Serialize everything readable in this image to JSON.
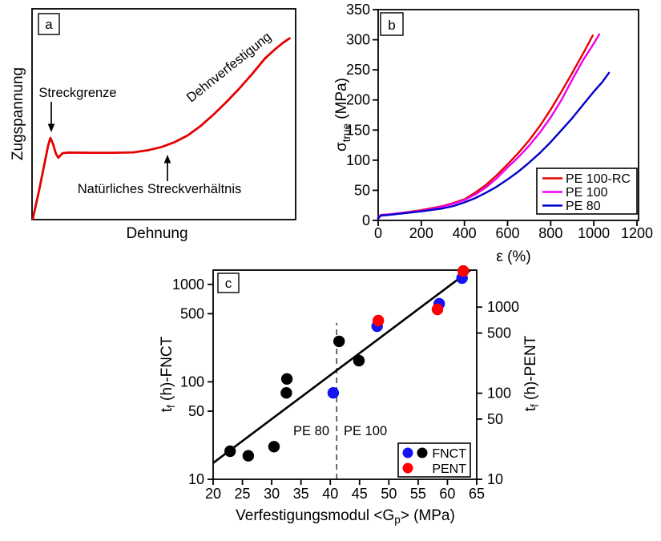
{
  "figure": {
    "background": "#ffffff",
    "description": "Three-panel polyethylene strain-hardening figure"
  },
  "chart_data": [
    {
      "id": "a",
      "type": "line",
      "panel_label": "a",
      "xlabel": "Dehnung",
      "ylabel": "Zugspannung",
      "annotations": {
        "yield_point": "Streckgrenze",
        "strain_hardening": "Dehnverfestigung",
        "natural_draw_ratio": "Natürliches Streckverhältnis"
      },
      "curve_color": "#e60000",
      "curve_units": "normalized 0-100",
      "curve": [
        [
          0,
          0
        ],
        [
          2.5,
          14
        ],
        [
          4.6,
          27
        ],
        [
          6,
          35.5
        ],
        [
          6.8,
          38.8
        ],
        [
          7.8,
          36
        ],
        [
          9,
          31
        ],
        [
          9.9,
          29.3
        ],
        [
          11.5,
          31.5
        ],
        [
          14,
          31.8
        ],
        [
          22,
          31.7
        ],
        [
          31,
          31.7
        ],
        [
          39,
          31.9
        ],
        [
          45,
          33
        ],
        [
          50,
          34.5
        ],
        [
          55,
          36.8
        ],
        [
          60,
          40
        ],
        [
          65,
          44.5
        ],
        [
          70,
          50
        ],
        [
          75,
          56
        ],
        [
          80,
          62.5
        ],
        [
          85,
          69.5
        ],
        [
          90,
          77
        ],
        [
          94,
          81.5
        ],
        [
          97,
          84.5
        ],
        [
          99.5,
          86.6
        ]
      ]
    },
    {
      "id": "b",
      "type": "line",
      "panel_label": "b",
      "xlabel": "ε (%)",
      "ylabel": "σtrue (MPa)",
      "ylabel_main": "σ",
      "ylabel_sub": "true",
      "ylabel_unit": " (MPa)",
      "xlim": [
        0,
        1210
      ],
      "ylim": [
        0,
        350
      ],
      "xticks": [
        0,
        200,
        400,
        600,
        800,
        1000,
        1200
      ],
      "yticks": [
        0,
        50,
        100,
        150,
        200,
        250,
        300,
        350
      ],
      "legend_position": "bottom-right",
      "series": [
        {
          "name": "PE 100-RC",
          "color": "#e60000",
          "points": [
            [
              0,
              3
            ],
            [
              12,
              9
            ],
            [
              50,
              10
            ],
            [
              100,
              12
            ],
            [
              200,
              17
            ],
            [
              300,
              24
            ],
            [
              350,
              29
            ],
            [
              400,
              35
            ],
            [
              450,
              46
            ],
            [
              500,
              59
            ],
            [
              550,
              75
            ],
            [
              600,
              93
            ],
            [
              650,
              112
            ],
            [
              700,
              133
            ],
            [
              750,
              157
            ],
            [
              800,
              184
            ],
            [
              850,
              214
            ],
            [
              900,
              245
            ],
            [
              950,
              277
            ],
            [
              995,
              307
            ]
          ]
        },
        {
          "name": "PE 100",
          "color": "#ee00ee",
          "points": [
            [
              0,
              3
            ],
            [
              12,
              9
            ],
            [
              50,
              10
            ],
            [
              100,
              12
            ],
            [
              200,
              16
            ],
            [
              300,
              23
            ],
            [
              350,
              28
            ],
            [
              400,
              34
            ],
            [
              450,
              43
            ],
            [
              500,
              55
            ],
            [
              550,
              70
            ],
            [
              600,
              88
            ],
            [
              650,
              105
            ],
            [
              700,
              124
            ],
            [
              750,
              146
            ],
            [
              800,
              171
            ],
            [
              850,
              200
            ],
            [
              900,
              234
            ],
            [
              950,
              266
            ],
            [
              1000,
              294
            ],
            [
              1025,
              309
            ]
          ]
        },
        {
          "name": "PE 80",
          "color": "#0000cd",
          "points": [
            [
              0,
              3
            ],
            [
              12,
              8
            ],
            [
              50,
              9
            ],
            [
              100,
              11
            ],
            [
              200,
              15
            ],
            [
              300,
              20
            ],
            [
              350,
              24
            ],
            [
              400,
              30
            ],
            [
              450,
              37
            ],
            [
              500,
              46
            ],
            [
              550,
              56
            ],
            [
              600,
              68
            ],
            [
              650,
              81
            ],
            [
              700,
              96
            ],
            [
              750,
              112
            ],
            [
              800,
              130
            ],
            [
              850,
              150
            ],
            [
              900,
              170
            ],
            [
              950,
              192
            ],
            [
              1000,
              214
            ],
            [
              1040,
              230
            ],
            [
              1070,
              245
            ]
          ]
        }
      ]
    },
    {
      "id": "c",
      "type": "scatter",
      "panel_label": "c",
      "xlabel": "Verfestigungsmodul <Gp> (MPa)",
      "xlabel_prefix": "Verfestigungsmodul <G",
      "xlabel_sub": "p",
      "xlabel_suffix": "> (MPa)",
      "ylabel_left": "tf (h)-FNCT",
      "ylabel_right": "tf (h)-PENT",
      "ylabel_prefix": "t",
      "ylabel_sub": "f",
      "ylabel_left_suffix": " (h)-FNCT",
      "ylabel_right_suffix": " (h)-PENT",
      "x_scale": "linear",
      "y_scale": "log",
      "xlim": [
        20,
        65
      ],
      "ylim_left": [
        10,
        1430
      ],
      "ylim_right": [
        10,
        2750
      ],
      "xticks": [
        20,
        25,
        30,
        35,
        40,
        45,
        50,
        55,
        60,
        65
      ],
      "yticks": [
        10,
        50,
        100,
        500,
        1000
      ],
      "fit_line": {
        "x1": 20,
        "y1": 14.7,
        "x2": 63.9,
        "y2": 1400
      },
      "dashed_line": {
        "x": 41.1,
        "y1": 10,
        "y2": 402
      },
      "region_labels": [
        {
          "text": "PE 80",
          "side": "left-of-dashed-line"
        },
        {
          "text": "PE 100",
          "side": "right-of-dashed-line"
        }
      ],
      "series": [
        {
          "name": "FNCT",
          "marker": "circle",
          "color": "#000000",
          "axis": "left",
          "points": [
            [
              22.9,
              19.4
            ],
            [
              26.0,
              17.4
            ],
            [
              30.4,
              21.6
            ],
            [
              32.6,
              107
            ],
            [
              32.5,
              77
            ],
            [
              41.5,
              260
            ],
            [
              44.9,
              165
            ]
          ]
        },
        {
          "name": "FNCT",
          "marker": "circle",
          "color": "#1414f0",
          "axis": "left",
          "points": [
            [
              40.5,
              77
            ],
            [
              48.0,
              372
            ],
            [
              58.6,
              632
            ],
            [
              62.5,
              1160
            ]
          ]
        },
        {
          "name": "PENT",
          "marker": "circle",
          "color": "#ff0000",
          "axis": "right",
          "points": [
            [
              48.2,
              697
            ],
            [
              58.3,
              941
            ],
            [
              62.7,
              2630
            ]
          ]
        }
      ],
      "legend": [
        {
          "label": "FNCT",
          "dots": [
            "#1414f0",
            "#000000"
          ]
        },
        {
          "label": "PENT",
          "dots": [
            "#ff0000"
          ]
        }
      ],
      "legend_position": "bottom-right"
    }
  ]
}
